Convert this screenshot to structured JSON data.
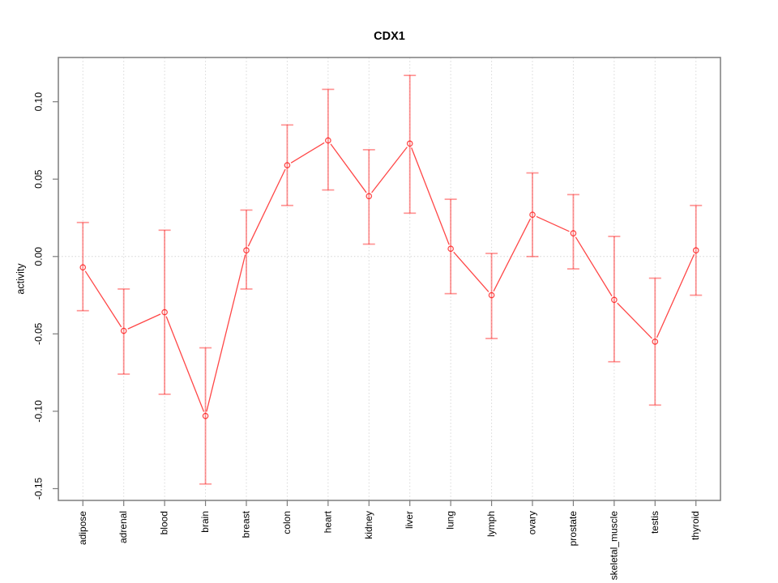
{
  "chart_data": {
    "type": "line",
    "title": "CDX1",
    "xlabel": "",
    "ylabel": "activity",
    "legend_position": "none",
    "grid": "vertical dotted gridlines at each category; dotted horizontal line at y=0",
    "categories": [
      "adipose",
      "adrenal",
      "blood",
      "brain",
      "breast",
      "colon",
      "heart",
      "kidney",
      "liver",
      "lung",
      "lymph",
      "ovary",
      "prostate",
      "skeletal_muscle",
      "testis",
      "thyroid"
    ],
    "series": [
      {
        "name": "activity",
        "values": [
          -0.007,
          -0.048,
          -0.036,
          -0.103,
          0.004,
          0.059,
          0.075,
          0.039,
          0.073,
          0.005,
          -0.025,
          0.027,
          0.015,
          -0.028,
          -0.055,
          0.004
        ],
        "error_upper": [
          0.022,
          -0.021,
          0.017,
          -0.059,
          0.03,
          0.085,
          0.108,
          0.069,
          0.117,
          0.037,
          0.002,
          0.054,
          0.04,
          0.013,
          -0.014,
          0.033
        ],
        "error_lower": [
          -0.035,
          -0.076,
          -0.089,
          -0.147,
          -0.021,
          0.033,
          0.043,
          0.008,
          0.028,
          -0.024,
          -0.053,
          0.0,
          -0.008,
          -0.068,
          -0.096,
          -0.025
        ]
      }
    ],
    "yticks": [
      0.1,
      0.05,
      0.0,
      -0.05,
      -0.1,
      -0.15
    ],
    "ytick_labels": [
      "0.10",
      "0.05",
      "0.00",
      "-0.05",
      "-0.10",
      "-0.15"
    ],
    "ylim": [
      -0.1576,
      0.1286
    ],
    "marker": "open-circle",
    "colors": {
      "point_line": "rgba(255,0,0,0.72)",
      "error_bar": "rgba(255,0,0,0.42)",
      "gridline": "#d8d8d8",
      "zero_line": "#d4d4d4",
      "box": "#7d7d7d",
      "text": "#000000",
      "background": "#ffffff"
    }
  }
}
